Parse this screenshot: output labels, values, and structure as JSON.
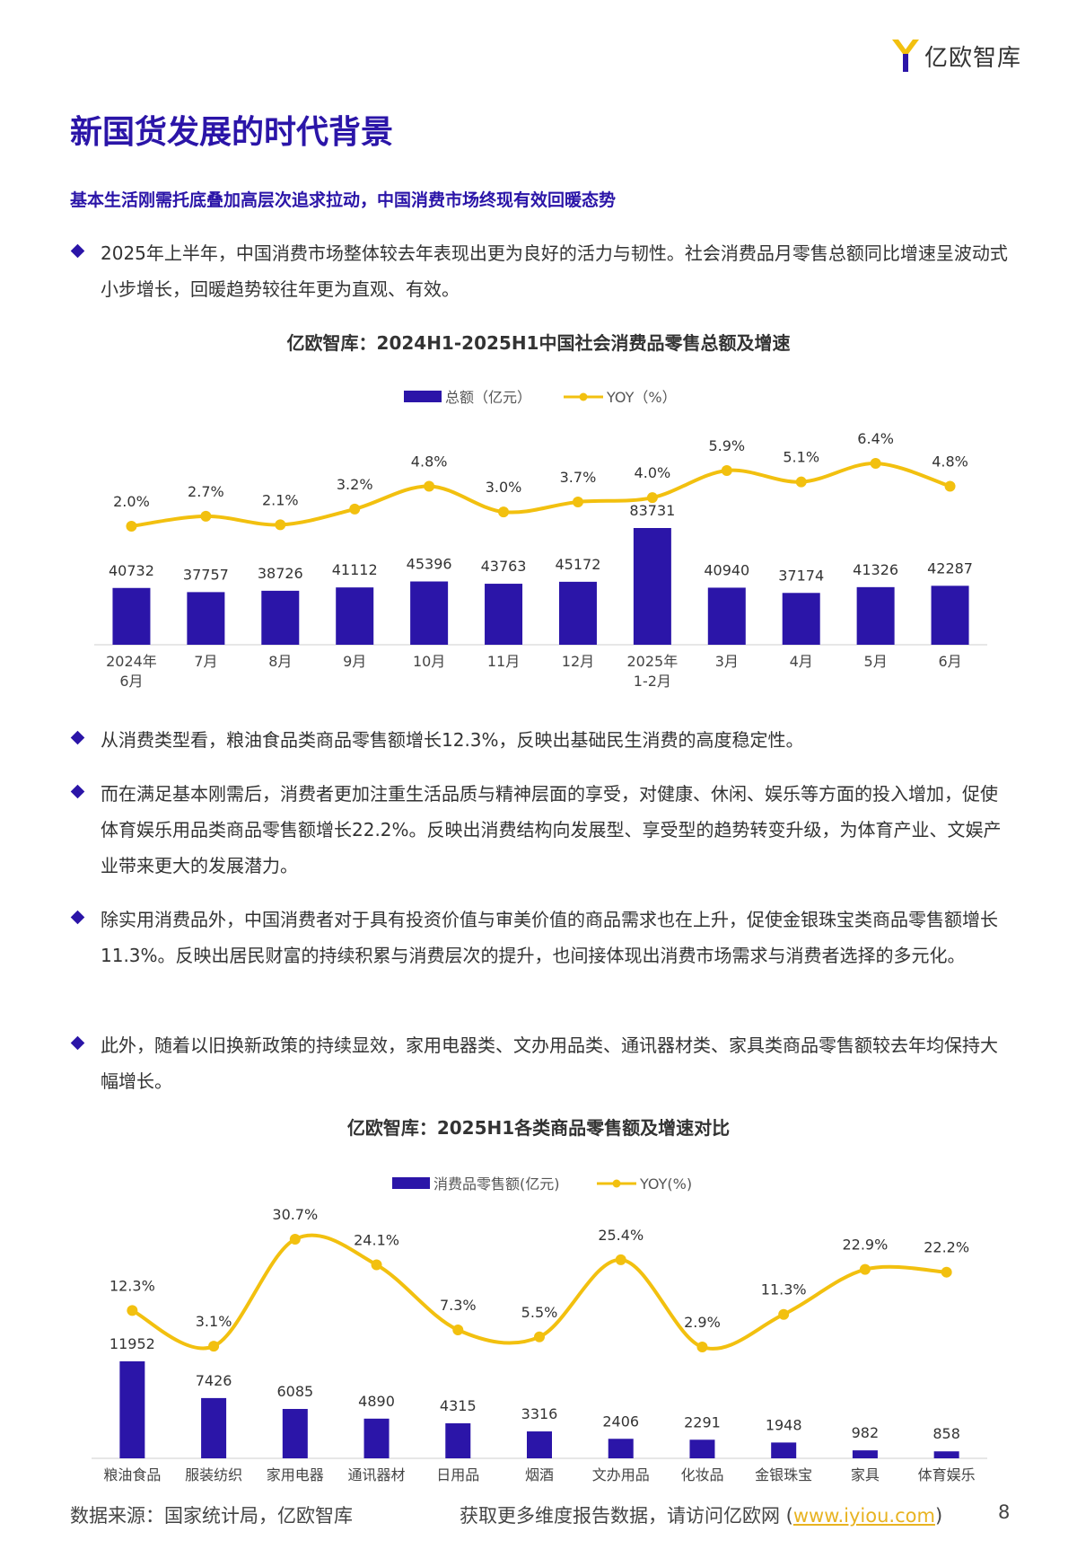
{
  "brand": {
    "logo_text": "亿欧智库",
    "accent": "#2b15a8",
    "line_color": "#f2c00f",
    "link_color": "#e8b321"
  },
  "page_title": "新国货发展的时代背景",
  "subtitle": "基本生活刚需托底叠加高层次追求拉动，中国消费市场终现有效回暖态势",
  "intro_bullet": "2025年上半年，中国消费市场整体较去年表现出更为良好的活力与韧性。社会消费品月零售总额同比增速呈波动式小步增长，回暖趋势较往年更为直观、有效。",
  "chart_data": [
    {
      "type": "bar+line",
      "title": "亿欧智库：2024H1-2025H1中国社会消费品零售总额及增速",
      "categories": [
        "2024年\n6月",
        "7月",
        "8月",
        "9月",
        "10月",
        "11月",
        "12月",
        "2025年\n1-2月",
        "3月",
        "4月",
        "5月",
        "6月"
      ],
      "series": [
        {
          "name": "总额（亿元）",
          "type": "bar",
          "values": [
            40732,
            37757,
            38726,
            41112,
            45396,
            43763,
            45172,
            83731,
            40940,
            37174,
            41326,
            42287
          ]
        },
        {
          "name": "YOY（%）",
          "type": "line",
          "values": [
            2.0,
            2.7,
            2.1,
            3.2,
            4.8,
            3.0,
            3.7,
            4.0,
            5.9,
            5.1,
            6.4,
            4.8
          ]
        }
      ],
      "bar_labels": [
        "40732",
        "37757",
        "38726",
        "41112",
        "45396",
        "43763",
        "45172",
        "83731",
        "40940",
        "37174",
        "41326",
        "42287"
      ],
      "line_labels": [
        "2.0%",
        "2.7%",
        "2.1%",
        "3.2%",
        "4.8%",
        "3.0%",
        "3.7%",
        "4.0%",
        "5.9%",
        "5.1%",
        "6.4%",
        "4.8%"
      ],
      "legend_position": "top-center",
      "grid": false
    },
    {
      "type": "bar+line",
      "title": "亿欧智库：2025H1各类商品零售额及增速对比",
      "categories": [
        "粮油食品",
        "服装纺织",
        "家用电器",
        "通讯器材",
        "日用品",
        "烟酒",
        "文办用品",
        "化妆品",
        "金银珠宝",
        "家具",
        "体育娱乐"
      ],
      "series": [
        {
          "name": "消费品零售额(亿元)",
          "type": "bar",
          "values": [
            11952,
            7426,
            6085,
            4890,
            4315,
            3316,
            2406,
            2291,
            1948,
            982,
            858
          ]
        },
        {
          "name": "YOY(%)",
          "type": "line",
          "values": [
            12.3,
            3.1,
            30.7,
            24.1,
            7.3,
            5.5,
            25.4,
            2.9,
            11.3,
            22.9,
            22.2
          ]
        }
      ],
      "bar_labels": [
        "11952",
        "7426",
        "6085",
        "4890",
        "4315",
        "3316",
        "2406",
        "2291",
        "1948",
        "982",
        "858"
      ],
      "line_labels": [
        "12.3%",
        "3.1%",
        "30.7%",
        "24.1%",
        "7.3%",
        "5.5%",
        "25.4%",
        "2.9%",
        "11.3%",
        "22.9%",
        "22.2%"
      ],
      "legend_position": "top-center",
      "grid": false
    }
  ],
  "bullets": [
    "从消费类型看，粮油食品类商品零售额增长12.3%，反映出基础民生消费的高度稳定性。",
    "而在满足基本刚需后，消费者更加注重生活品质与精神层面的享受，对健康、休闲、娱乐等方面的投入增加，促使体育娱乐用品类商品零售额增长22.2%。反映出消费结构向发展型、享受型的趋势转变升级，为体育产业、文娱产业带来更大的发展潜力。",
    "除实用消费品外，中国消费者对于具有投资价值与审美价值的商品需求也在上升，促使金银珠宝类商品零售额增长11.3%。反映出居民财富的持续积累与消费层次的提升，也间接体现出消费市场需求与消费者选择的多元化。",
    "此外，随着以旧换新政策的持续显效，家用电器类、文办用品类、通讯器材类、家具类商品零售额较去年均保持大幅增长。"
  ],
  "footer": {
    "source": "数据来源：国家统计局，亿欧智库",
    "cta_prefix": "获取更多维度报告数据，请访问亿欧网 (",
    "cta_link": "www.iyiou.com",
    "cta_suffix": ")",
    "page_number": "8"
  }
}
